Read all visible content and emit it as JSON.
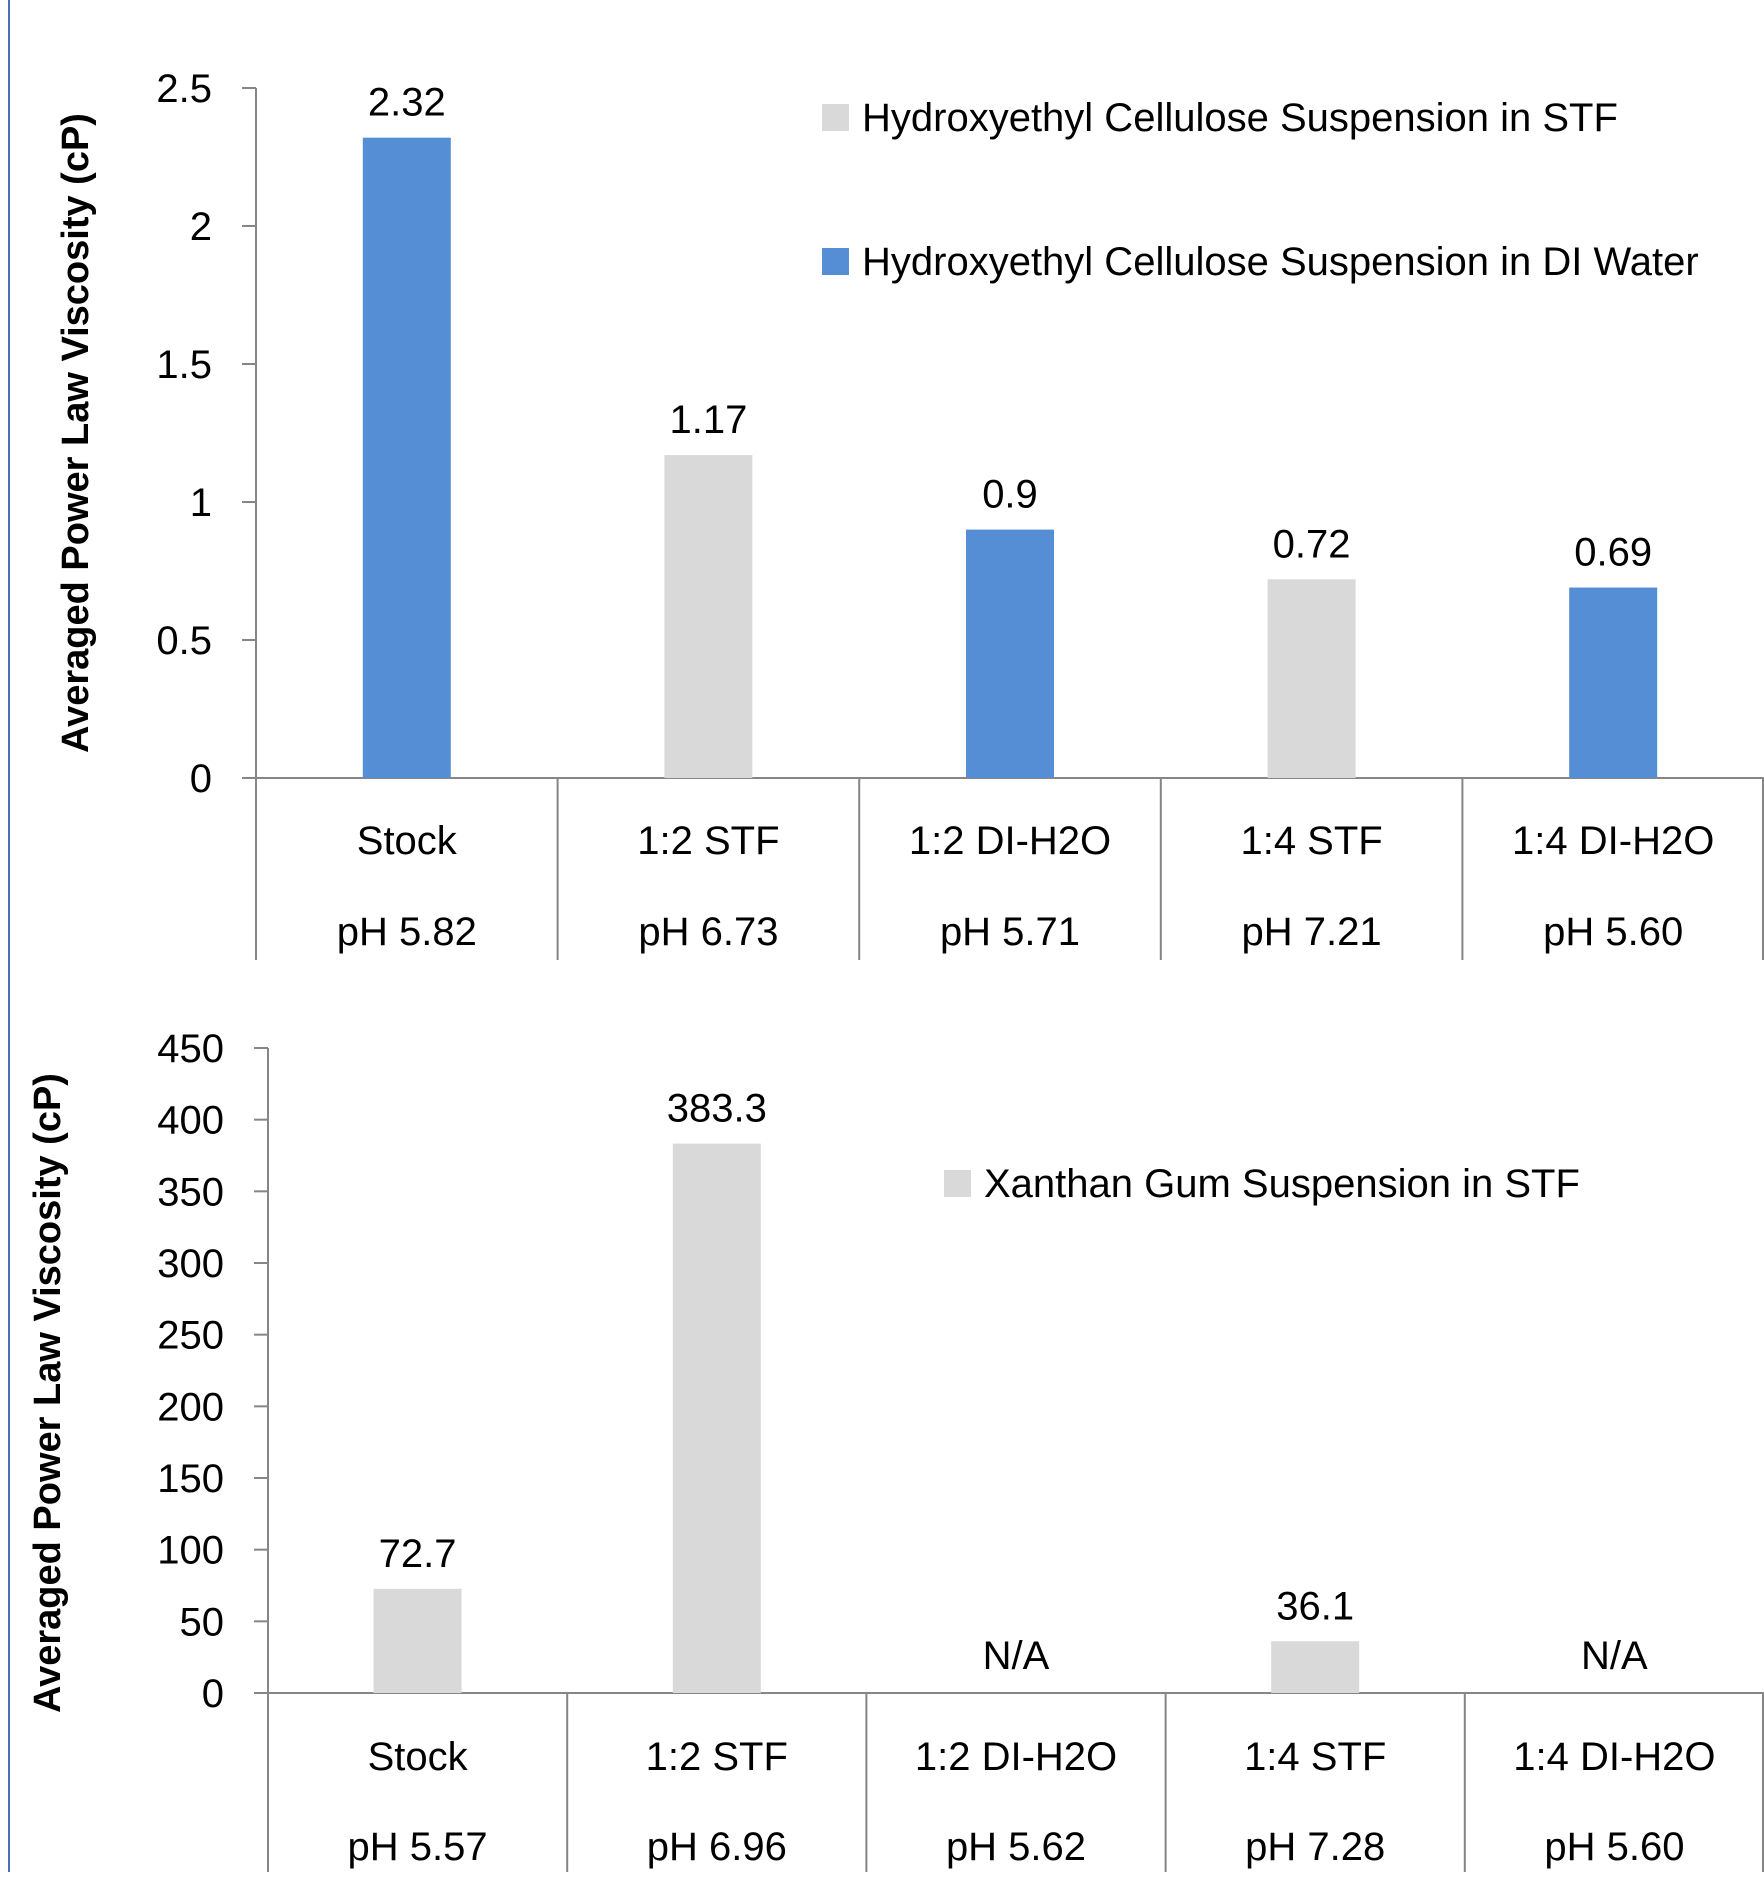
{
  "colors": {
    "stf": "#d9d9d9",
    "di_water": "#558ed5",
    "axis": "#868686",
    "frame": "#4a6fb8"
  },
  "chart_data": [
    {
      "type": "bar",
      "ylabel": "Averaged Power Law Viscosity (cP)",
      "ylim": [
        0,
        2.5
      ],
      "yticks": [
        0,
        0.5,
        1,
        1.5,
        2,
        2.5
      ],
      "ytick_labels": [
        "0",
        "0.5",
        "1",
        "1.5",
        "2",
        "2.5"
      ],
      "legend_position": "top-right",
      "series": [
        {
          "name": "Hydroxyethyl Cellulose Suspension in STF",
          "color": "#d9d9d9"
        },
        {
          "name": "Hydroxyethyl Cellulose Suspension in DI Water",
          "color": "#558ed5"
        }
      ],
      "categories": [
        {
          "name": "Stock",
          "ph": "pH 5.82",
          "value": 2.32,
          "label": "2.32",
          "series": 1
        },
        {
          "name": "1:2 STF",
          "ph": "pH 6.73",
          "value": 1.17,
          "label": "1.17",
          "series": 0
        },
        {
          "name": "1:2 DI-H2O",
          "ph": "pH 5.71",
          "value": 0.9,
          "label": "0.9",
          "series": 1
        },
        {
          "name": "1:4 STF",
          "ph": "pH 7.21",
          "value": 0.72,
          "label": "0.72",
          "series": 0
        },
        {
          "name": "1:4 DI-H2O",
          "ph": "pH 5.60",
          "value": 0.69,
          "label": "0.69",
          "series": 1
        }
      ]
    },
    {
      "type": "bar",
      "ylabel": "Averaged Power Law Viscosity (cP)",
      "ylim": [
        0,
        450
      ],
      "yticks": [
        0,
        50,
        100,
        150,
        200,
        250,
        300,
        350,
        400,
        450
      ],
      "ytick_labels": [
        "0",
        "50",
        "100",
        "150",
        "200",
        "250",
        "300",
        "350",
        "400",
        "450"
      ],
      "legend_position": "top-right",
      "series": [
        {
          "name": "Xanthan Gum Suspension in STF",
          "color": "#d9d9d9"
        }
      ],
      "categories": [
        {
          "name": "Stock",
          "ph": "pH 5.57",
          "value": 72.7,
          "label": "72.7",
          "series": 0
        },
        {
          "name": "1:2 STF",
          "ph": "pH 6.96",
          "value": 383.3,
          "label": "383.3",
          "series": 0
        },
        {
          "name": "1:2 DI-H2O",
          "ph": "pH 5.62",
          "value": null,
          "label": "N/A",
          "series": 0
        },
        {
          "name": "1:4 STF",
          "ph": "pH 7.28",
          "value": 36.1,
          "label": "36.1",
          "series": 0
        },
        {
          "name": "1:4 DI-H2O",
          "ph": "pH 5.60",
          "value": null,
          "label": "N/A",
          "series": 0
        }
      ]
    }
  ]
}
